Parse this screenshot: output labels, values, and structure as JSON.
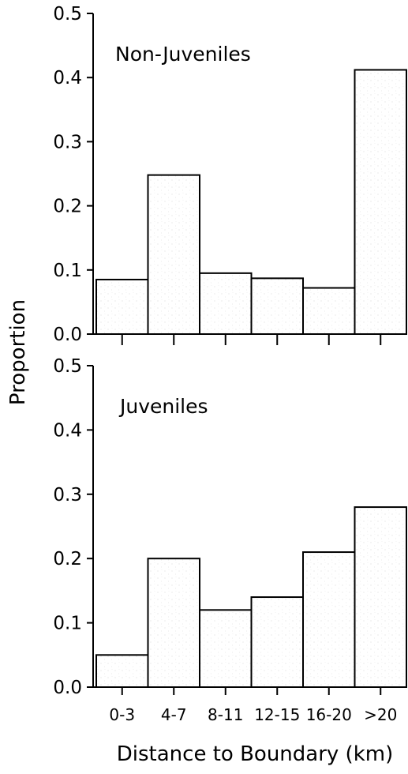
{
  "chart_data": [
    {
      "type": "bar",
      "panel_label": "Non-Juveniles",
      "categories": [
        "0-3",
        "4-7",
        "8-11",
        "12-15",
        "16-20",
        ">20"
      ],
      "values": [
        0.085,
        0.248,
        0.095,
        0.087,
        0.072,
        0.412
      ],
      "ylim": [
        0,
        0.5
      ],
      "yticks": [
        "0.0",
        "0.1",
        "0.2",
        "0.3",
        "0.4",
        "0.5"
      ]
    },
    {
      "type": "bar",
      "panel_label": "Juveniles",
      "categories": [
        "0-3",
        "4-7",
        "8-11",
        "12-15",
        "16-20",
        ">20"
      ],
      "values": [
        0.05,
        0.2,
        0.12,
        0.14,
        0.21,
        0.28
      ],
      "ylim": [
        0,
        0.5
      ],
      "yticks": [
        "0.0",
        "0.1",
        "0.2",
        "0.3",
        "0.4",
        "0.5"
      ]
    }
  ],
  "xlabel": "Distance to Boundary (km)",
  "ylabel": "Proportion",
  "xtick_labels": [
    "0-3",
    "4-7",
    "8-11",
    "12-15",
    "16-20",
    ">20"
  ]
}
